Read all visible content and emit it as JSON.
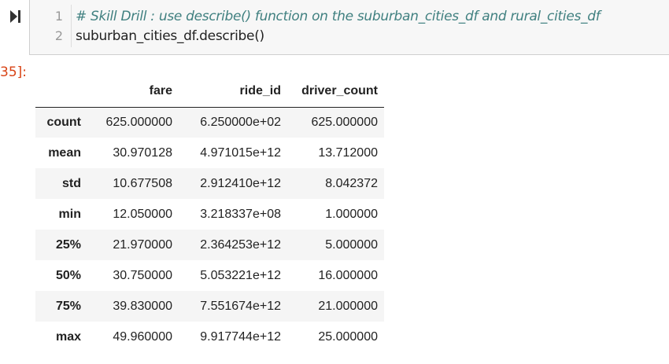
{
  "input_cell": {
    "run_icon": "run-step-icon",
    "lines": [
      {
        "number": "1",
        "text": "# Skill Drill : use describe() function on the suburban_cities_df and rural_cities_df"
      },
      {
        "number": "2",
        "text": "suburban_cities_df.describe()"
      }
    ]
  },
  "output_prompt": "35]:",
  "dataframe": {
    "columns": [
      "fare",
      "ride_id",
      "driver_count"
    ],
    "rows": [
      {
        "index": "count",
        "fare": "625.000000",
        "ride_id": "6.250000e+02",
        "driver_count": "625.000000"
      },
      {
        "index": "mean",
        "fare": "30.970128",
        "ride_id": "4.971015e+12",
        "driver_count": "13.712000"
      },
      {
        "index": "std",
        "fare": "10.677508",
        "ride_id": "2.912410e+12",
        "driver_count": "8.042372"
      },
      {
        "index": "min",
        "fare": "12.050000",
        "ride_id": "3.218337e+08",
        "driver_count": "1.000000"
      },
      {
        "index": "25%",
        "fare": "21.970000",
        "ride_id": "2.364253e+12",
        "driver_count": "5.000000"
      },
      {
        "index": "50%",
        "fare": "30.750000",
        "ride_id": "5.053221e+12",
        "driver_count": "16.000000"
      },
      {
        "index": "75%",
        "fare": "39.830000",
        "ride_id": "7.551674e+12",
        "driver_count": "21.000000"
      },
      {
        "index": "max",
        "fare": "49.960000",
        "ride_id": "9.917744e+12",
        "driver_count": "25.000000"
      }
    ]
  }
}
